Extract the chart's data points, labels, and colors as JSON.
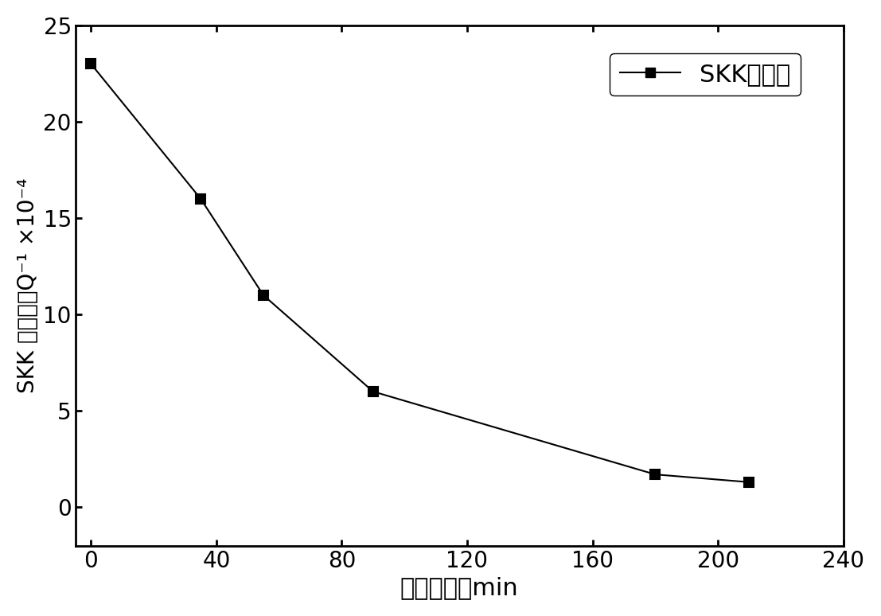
{
  "x": [
    0,
    35,
    55,
    90,
    180,
    210
  ],
  "y": [
    23,
    16,
    11,
    6,
    1.7,
    1.3
  ],
  "xlabel": "保温时间，min",
  "ylabel_line1": "SKK 峰强度，Q⁻¹ ×10⁻⁴",
  "legend_label": "SKK峰强度",
  "xlim": [
    -5,
    240
  ],
  "ylim": [
    -2,
    25
  ],
  "xticks": [
    0,
    40,
    80,
    120,
    160,
    200,
    240
  ],
  "yticks": [
    0,
    5,
    10,
    15,
    20,
    25
  ],
  "line_color": "#000000",
  "marker": "s",
  "marker_size": 8,
  "marker_facecolor": "#000000",
  "linewidth": 1.5,
  "xlabel_fontsize": 22,
  "ylabel_fontsize": 20,
  "tick_fontsize": 20,
  "legend_fontsize": 22,
  "background_color": "#ffffff",
  "spine_linewidth": 2.0
}
